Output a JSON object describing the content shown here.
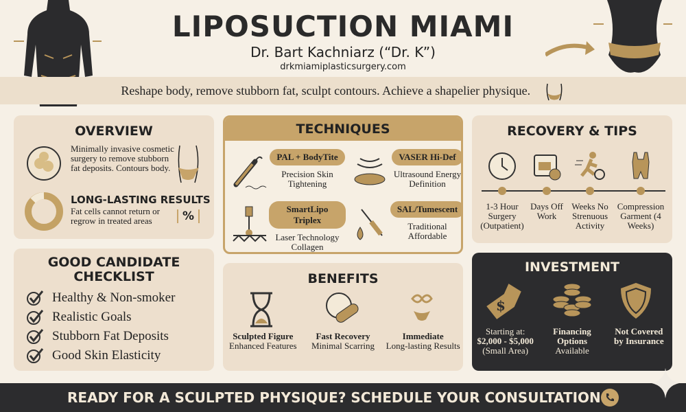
{
  "header": {
    "title": "LIPOSUCTION MIAMI",
    "doctor": "Dr. Bart Kachniarz (“Dr. K”)",
    "website": "drkmiamiplasticsurgery.com",
    "tagline": "Reshape body, remove stubborn fat, sculpt contours. Achieve a shapelier physique."
  },
  "overview": {
    "title": "OVERVIEW",
    "text": "Minimally invasive cosmetic surgery to remove stubborn fat deposits. Contours body.",
    "results_title": "LONG-LASTING RESULTS",
    "results_text": "Fat cells cannot return or regrow in treated areas",
    "percent_symbol": "%"
  },
  "techniques": {
    "title": "TECHNIQUES",
    "items": [
      {
        "name": "PAL + BodyTite",
        "desc": "Precision Skin Tightening",
        "icon": "cannula-icon"
      },
      {
        "name": "VASER Hi-Def",
        "desc": "Ultrasound Energy Definition",
        "icon": "ultrasound-icon"
      },
      {
        "name": "SmartLipo Triplex",
        "desc": "Laser Technology Collagen",
        "icon": "laser-icon"
      },
      {
        "name": "SAL/Tumescent",
        "desc": "Traditional Affordable",
        "icon": "syringe-icon"
      }
    ]
  },
  "recovery": {
    "title": "RECOVERY & TIPS",
    "items": [
      {
        "label": "1-3 Hour Surgery (Outpatient)",
        "icon": "clock-icon"
      },
      {
        "label": "Days Off Work",
        "icon": "calendar-icon"
      },
      {
        "label": "Weeks No Strenuous Activity",
        "icon": "running-icon"
      },
      {
        "label": "Compression Garment (4 Weeks)",
        "icon": "garment-icon"
      }
    ]
  },
  "checklist": {
    "title": "GOOD CANDIDATE CHECKLIST",
    "items": [
      "Healthy & Non-smoker",
      "Realistic Goals",
      "Stubborn Fat Deposits",
      "Good Skin Elasticity"
    ]
  },
  "benefits": {
    "title": "BENEFITS",
    "items": [
      {
        "title": "Sculpted Figure",
        "desc": "Enhanced Features",
        "icon": "hourglass-icon"
      },
      {
        "title": "Fast Recovery",
        "desc": "Minimal Scarring",
        "icon": "clock-bandage-icon"
      },
      {
        "title": "Immediate",
        "desc": "Long-lasting Results",
        "icon": "infinity-body-icon"
      }
    ]
  },
  "investment": {
    "title": "INVESTMENT",
    "items": [
      {
        "l1": "Starting at:",
        "l2": "$2,000 - $5,000",
        "l3": "(Small Area)",
        "icon": "price-tag-icon"
      },
      {
        "l1": "Financing",
        "l2": "Options",
        "l3": "Available",
        "icon": "coins-icon"
      },
      {
        "l1": "Not Covered",
        "l2": "by Insurance",
        "l3": "",
        "icon": "shield-icon"
      }
    ]
  },
  "footer": {
    "cta": "READY FOR A SCULPTED PHYSIQUE? SCHEDULE YOUR CONSULTATION"
  },
  "colors": {
    "background": "#f6f0e6",
    "panel": "#eddfcd",
    "gold": "#b8955a",
    "dark": "#2c2c2e"
  }
}
